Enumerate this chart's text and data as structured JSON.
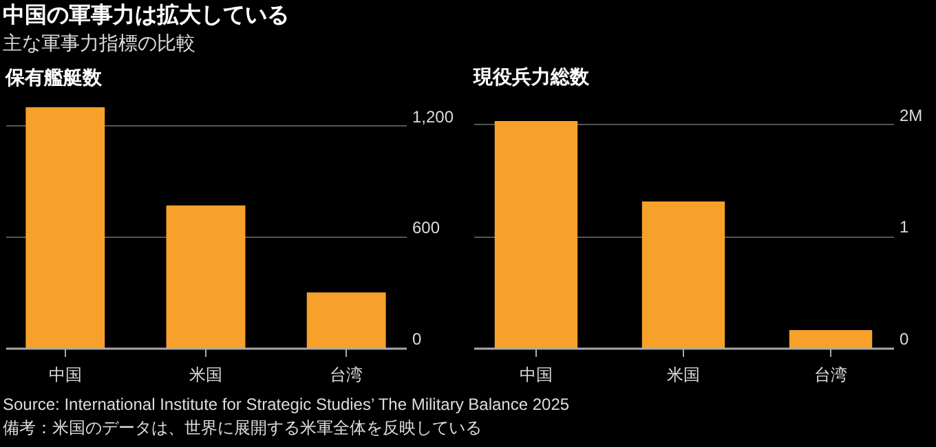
{
  "chart_data": [
    {
      "type": "bar",
      "title": "中国の軍事力は拡大している",
      "subtitle": "主な軍事力指標の比較",
      "ylabel": "保有艦艇数",
      "categories": [
        "中国",
        "米国",
        "台湾"
      ],
      "values": [
        1300,
        770,
        300
      ],
      "color": "#f7a12b",
      "ylim": [
        0,
        1300
      ],
      "yticks": [
        0,
        600,
        {
          "value": 1200,
          "label": "1,200"
        }
      ],
      "grid": "y",
      "annotations": [
        "Source: International Institute for Strategic Studies’ The Military Balance 2025",
        "備考：米国のデータは、世界に展開する米軍全体を反映している"
      ]
    },
    {
      "type": "bar",
      "ylabel": "現役兵力総数",
      "categories": [
        "中国",
        "米国",
        "台湾"
      ],
      "values": [
        2.03,
        1.31,
        0.16
      ],
      "color": "#f7a12b",
      "ylim": [
        0,
        2.03
      ],
      "yticks": [
        0,
        1,
        {
          "value": 2,
          "label": "2M"
        }
      ],
      "grid": "y"
    }
  ]
}
